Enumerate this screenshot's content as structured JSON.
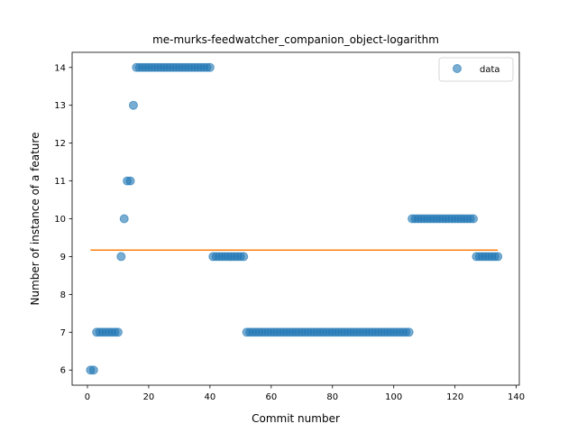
{
  "chart_data": {
    "type": "scatter",
    "title": "me-murks-feedwatcher_companion_object-logarithm",
    "xlabel": "Commit number",
    "ylabel": "Number of instance of a feature",
    "xlim": [
      -5,
      141
    ],
    "ylim": [
      5.6,
      14.4
    ],
    "xticks": [
      0,
      20,
      40,
      60,
      80,
      100,
      120,
      140
    ],
    "yticks": [
      6,
      7,
      8,
      9,
      10,
      11,
      12,
      13,
      14
    ],
    "grid": false,
    "legend": {
      "position": "top-right",
      "entries": [
        "data"
      ]
    },
    "series": [
      {
        "name": "data",
        "kind": "scatter",
        "color": "#1f77b4",
        "x": [
          1,
          2,
          3,
          4,
          5,
          6,
          7,
          8,
          9,
          10,
          11,
          12,
          13,
          14,
          15,
          16,
          17,
          18,
          19,
          20,
          21,
          22,
          23,
          24,
          25,
          26,
          27,
          28,
          29,
          30,
          31,
          32,
          33,
          34,
          35,
          36,
          37,
          38,
          39,
          40,
          41,
          42,
          43,
          44,
          45,
          46,
          47,
          48,
          49,
          50,
          51,
          52,
          53,
          54,
          55,
          56,
          57,
          58,
          59,
          60,
          61,
          62,
          63,
          64,
          65,
          66,
          67,
          68,
          69,
          70,
          71,
          72,
          73,
          74,
          75,
          76,
          77,
          78,
          79,
          80,
          81,
          82,
          83,
          84,
          85,
          86,
          87,
          88,
          89,
          90,
          91,
          92,
          93,
          94,
          95,
          96,
          97,
          98,
          99,
          100,
          101,
          102,
          103,
          104,
          105,
          106,
          107,
          108,
          109,
          110,
          111,
          112,
          113,
          114,
          115,
          116,
          117,
          118,
          119,
          120,
          121,
          122,
          123,
          124,
          125,
          126,
          127,
          128,
          129,
          130,
          131,
          132,
          133,
          134
        ],
        "y": [
          6,
          6,
          7,
          7,
          7,
          7,
          7,
          7,
          7,
          7,
          9,
          10,
          11,
          11,
          13,
          14,
          14,
          14,
          14,
          14,
          14,
          14,
          14,
          14,
          14,
          14,
          14,
          14,
          14,
          14,
          14,
          14,
          14,
          14,
          14,
          14,
          14,
          14,
          14,
          14,
          9,
          9,
          9,
          9,
          9,
          9,
          9,
          9,
          9,
          9,
          9,
          7,
          7,
          7,
          7,
          7,
          7,
          7,
          7,
          7,
          7,
          7,
          7,
          7,
          7,
          7,
          7,
          7,
          7,
          7,
          7,
          7,
          7,
          7,
          7,
          7,
          7,
          7,
          7,
          7,
          7,
          7,
          7,
          7,
          7,
          7,
          7,
          7,
          7,
          7,
          7,
          7,
          7,
          7,
          7,
          7,
          7,
          7,
          7,
          7,
          7,
          7,
          7,
          7,
          7,
          10,
          10,
          10,
          10,
          10,
          10,
          10,
          10,
          10,
          10,
          10,
          10,
          10,
          10,
          10,
          10,
          10,
          10,
          10,
          10,
          10,
          9,
          9,
          9,
          9,
          9,
          9,
          9,
          9
        ]
      },
      {
        "name": "",
        "kind": "line",
        "color": "#ff7f0e",
        "x": [
          1,
          134
        ],
        "y": [
          9.17,
          9.17
        ]
      }
    ]
  }
}
